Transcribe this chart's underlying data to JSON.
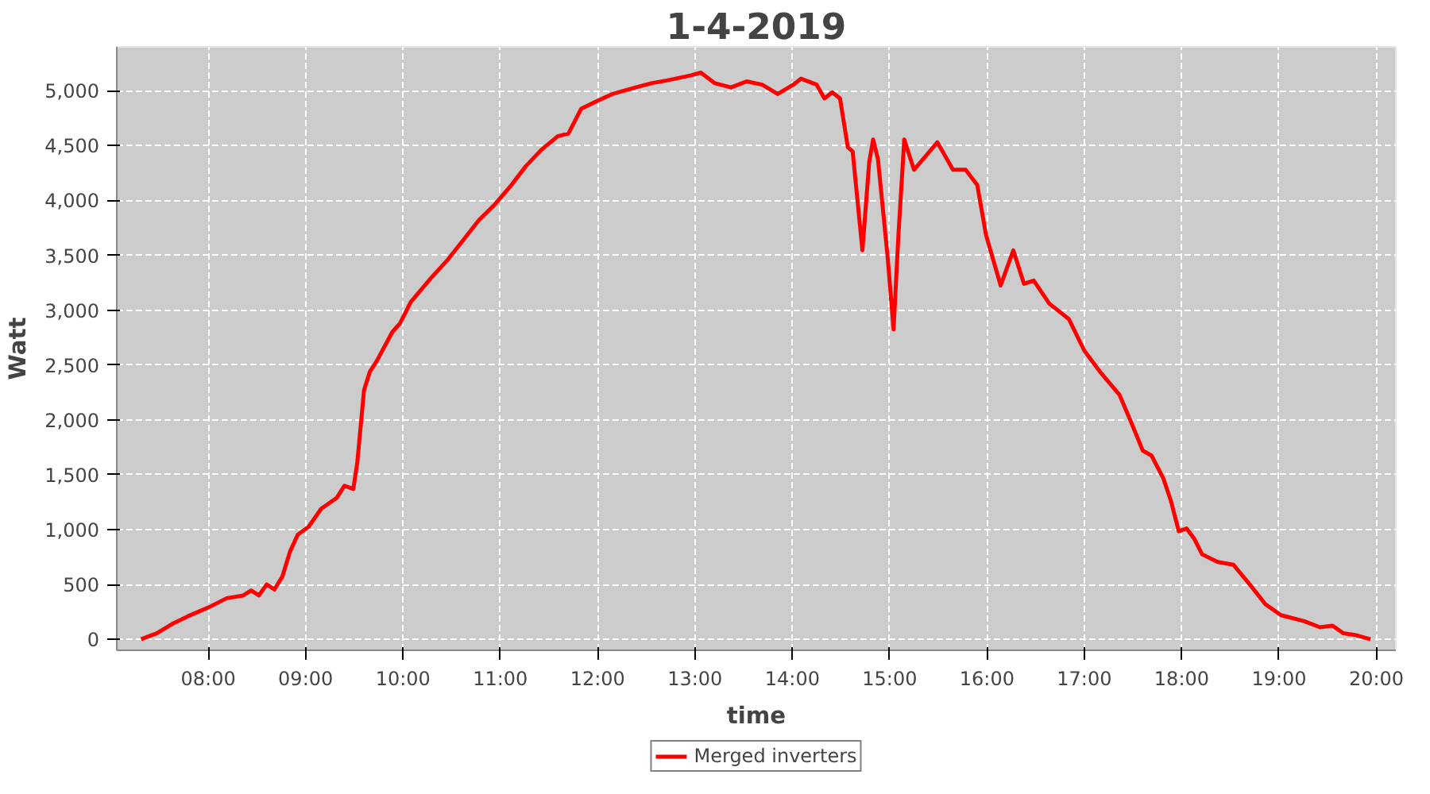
{
  "chart_data": {
    "type": "line",
    "title": "1-4-2019",
    "xlabel": "time",
    "ylabel": "Watt",
    "xlim": [
      7.06,
      20.2
    ],
    "ylim": [
      -100,
      5400
    ],
    "xticks": [
      {
        "value": 8,
        "label": "08:00"
      },
      {
        "value": 9,
        "label": "09:00"
      },
      {
        "value": 10,
        "label": "10:00"
      },
      {
        "value": 11,
        "label": "11:00"
      },
      {
        "value": 12,
        "label": "12:00"
      },
      {
        "value": 13,
        "label": "13:00"
      },
      {
        "value": 14,
        "label": "14:00"
      },
      {
        "value": 15,
        "label": "15:00"
      },
      {
        "value": 16,
        "label": "16:00"
      },
      {
        "value": 17,
        "label": "17:00"
      },
      {
        "value": 18,
        "label": "18:00"
      },
      {
        "value": 19,
        "label": "19:00"
      },
      {
        "value": 20,
        "label": "20:00"
      }
    ],
    "yticks": [
      0,
      {
        "value": 500,
        "label": "500"
      },
      {
        "value": 1000,
        "label": "1,000"
      },
      {
        "value": 1500,
        "label": "1,500"
      },
      {
        "value": 2000,
        "label": "2,000"
      },
      {
        "value": 2500,
        "label": "2,500"
      },
      {
        "value": 3000,
        "label": "3,000"
      },
      {
        "value": 3500,
        "label": "3,500"
      },
      {
        "value": 4000,
        "label": "4,000"
      },
      {
        "value": 4500,
        "label": "4,500"
      },
      {
        "value": 5000,
        "label": "5,000"
      }
    ],
    "grid": true,
    "legend": "bottom",
    "series": [
      {
        "name": "Merged inverters",
        "color": "#ff0000",
        "x": [
          7.31,
          7.47,
          7.63,
          7.79,
          8.0,
          8.19,
          8.36,
          8.44,
          8.52,
          8.6,
          8.68,
          8.76,
          8.84,
          8.92,
          9.03,
          9.16,
          9.32,
          9.4,
          9.49,
          9.53,
          9.6,
          9.66,
          9.73,
          9.89,
          9.97,
          10.08,
          10.29,
          10.46,
          10.62,
          10.78,
          10.94,
          11.1,
          11.26,
          11.42,
          11.59,
          11.7,
          11.83,
          11.99,
          12.15,
          12.39,
          12.56,
          12.72,
          12.96,
          13.06,
          13.2,
          13.37,
          13.53,
          13.69,
          13.85,
          14.01,
          14.09,
          14.25,
          14.33,
          14.41,
          14.49,
          14.57,
          14.62,
          14.72,
          14.79,
          14.83,
          14.88,
          14.98,
          15.04,
          15.09,
          15.15,
          15.25,
          15.38,
          15.49,
          15.65,
          15.78,
          15.9,
          15.99,
          16.14,
          16.27,
          16.38,
          16.48,
          16.64,
          16.84,
          17.0,
          17.16,
          17.36,
          17.48,
          17.6,
          17.69,
          17.81,
          17.89,
          17.97,
          18.05,
          18.13,
          18.21,
          18.37,
          18.53,
          18.7,
          18.86,
          19.02,
          19.26,
          19.42,
          19.55,
          19.66,
          19.78,
          19.94
        ],
        "values": [
          0,
          55,
          140,
          210,
          290,
          375,
          400,
          445,
          400,
          500,
          455,
          570,
          800,
          955,
          1025,
          1190,
          1290,
          1400,
          1370,
          1605,
          2270,
          2440,
          2535,
          2800,
          2880,
          3075,
          3295,
          3460,
          3640,
          3820,
          3960,
          4125,
          4310,
          4460,
          4585,
          4610,
          4835,
          4905,
          4970,
          5030,
          5070,
          5095,
          5140,
          5165,
          5070,
          5030,
          5085,
          5055,
          4970,
          5055,
          5110,
          5055,
          4930,
          4985,
          4930,
          4485,
          4445,
          3545,
          4350,
          4555,
          4375,
          3475,
          2825,
          3685,
          4555,
          4280,
          4415,
          4530,
          4280,
          4280,
          4140,
          3685,
          3225,
          3545,
          3240,
          3270,
          3060,
          2920,
          2630,
          2440,
          2230,
          1980,
          1720,
          1675,
          1470,
          1260,
          985,
          1010,
          915,
          775,
          705,
          680,
          500,
          320,
          220,
          165,
          110,
          125,
          55,
          40,
          0
        ]
      }
    ]
  }
}
